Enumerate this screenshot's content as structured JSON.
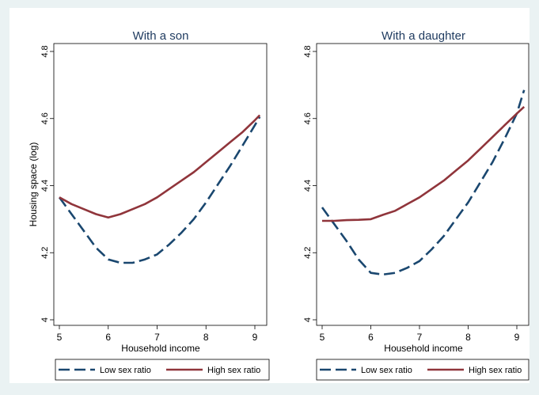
{
  "chart_data": [
    {
      "type": "line",
      "title": "With a son",
      "xlabel": "Household income",
      "ylabel": "Housing space (log)",
      "xlim": [
        5,
        9.1
      ],
      "ylim": [
        4.0,
        4.8
      ],
      "xticks": [
        "5",
        "6",
        "7",
        "8",
        "9"
      ],
      "yticks": [
        "4",
        "4.2",
        "4.4",
        "4.6",
        "4.8"
      ],
      "grid": false,
      "legend_position": "bottom",
      "series": [
        {
          "name": "Low sex ratio",
          "color": "#1a476f",
          "dash": "dashed",
          "x": [
            5.0,
            5.25,
            5.5,
            5.75,
            6.0,
            6.25,
            6.5,
            6.75,
            7.0,
            7.25,
            7.5,
            7.75,
            8.0,
            8.25,
            8.5,
            8.75,
            9.0,
            9.1
          ],
          "y": [
            4.365,
            4.315,
            4.265,
            4.215,
            4.18,
            4.17,
            4.17,
            4.18,
            4.195,
            4.225,
            4.26,
            4.3,
            4.35,
            4.405,
            4.46,
            4.52,
            4.58,
            4.605
          ]
        },
        {
          "name": "High sex ratio",
          "color": "#90353b",
          "dash": "solid",
          "x": [
            5.0,
            5.25,
            5.5,
            5.75,
            6.0,
            6.25,
            6.5,
            6.75,
            7.0,
            7.25,
            7.5,
            7.75,
            8.0,
            8.25,
            8.5,
            8.75,
            9.0,
            9.1
          ],
          "y": [
            4.365,
            4.345,
            4.33,
            4.315,
            4.305,
            4.315,
            4.33,
            4.345,
            4.365,
            4.39,
            4.415,
            4.44,
            4.47,
            4.5,
            4.53,
            4.56,
            4.595,
            4.61
          ]
        }
      ]
    },
    {
      "type": "line",
      "title": "With a daughter",
      "xlabel": "Household income",
      "ylabel": "",
      "xlim": [
        5,
        9.1
      ],
      "ylim": [
        4.0,
        4.8
      ],
      "xticks": [
        "5",
        "6",
        "7",
        "8",
        "9"
      ],
      "yticks": [
        "4",
        "4.2",
        "4.4",
        "4.6",
        "4.8"
      ],
      "grid": false,
      "legend_position": "bottom",
      "series": [
        {
          "name": "Low sex ratio",
          "color": "#1a476f",
          "dash": "dashed",
          "x": [
            5.0,
            5.25,
            5.5,
            5.75,
            6.0,
            6.25,
            6.5,
            6.75,
            7.0,
            7.25,
            7.5,
            7.75,
            8.0,
            8.25,
            8.5,
            8.75,
            9.0,
            9.15
          ],
          "y": [
            4.335,
            4.285,
            4.235,
            4.18,
            4.14,
            4.135,
            4.14,
            4.155,
            4.175,
            4.21,
            4.25,
            4.3,
            4.35,
            4.41,
            4.47,
            4.54,
            4.615,
            4.685
          ]
        },
        {
          "name": "High sex ratio",
          "color": "#90353b",
          "dash": "solid",
          "x": [
            5.0,
            5.25,
            5.5,
            5.75,
            6.0,
            6.25,
            6.5,
            6.75,
            7.0,
            7.25,
            7.5,
            7.75,
            8.0,
            8.25,
            8.5,
            8.75,
            9.0,
            9.15
          ],
          "y": [
            4.295,
            4.295,
            4.297,
            4.298,
            4.3,
            4.313,
            4.325,
            4.345,
            4.365,
            4.39,
            4.415,
            4.445,
            4.475,
            4.51,
            4.545,
            4.58,
            4.615,
            4.635
          ]
        }
      ]
    }
  ]
}
